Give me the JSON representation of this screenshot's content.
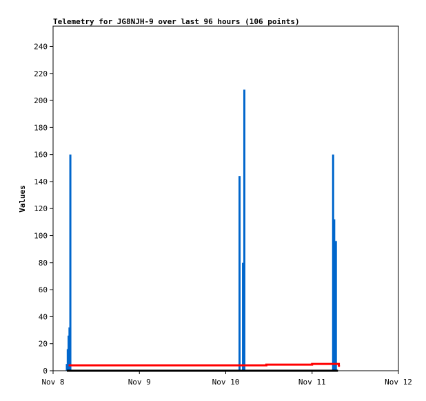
{
  "chart_data": {
    "type": "line",
    "title": "Telemetry for JG8NJH-9 over last 96 hours (106 points)",
    "xlabel": "",
    "ylabel": "Values",
    "ylim": [
      0,
      255
    ],
    "yticks": [
      0,
      20,
      40,
      60,
      80,
      100,
      120,
      140,
      160,
      180,
      200,
      220,
      240
    ],
    "xlim": [
      "Nov 8 00:00",
      "Nov 12 00:00"
    ],
    "xticks": [
      "Nov 8",
      "Nov 9",
      "Nov 10",
      "Nov 11",
      "Nov 12"
    ],
    "grid": false,
    "series": [
      {
        "color": "#0066cc",
        "style": "impulse",
        "points": [
          [
            "Nov 8 03:50",
            5
          ],
          [
            "Nov 8 04:05",
            16
          ],
          [
            "Nov 8 04:19",
            26
          ],
          [
            "Nov 8 04:34",
            32
          ],
          [
            "Nov 8 04:48",
            160
          ],
          [
            "Nov 10 03:50",
            144
          ],
          [
            "Nov 10 04:48",
            80
          ],
          [
            "Nov 10 05:10",
            208
          ],
          [
            "Nov 11 05:51",
            160
          ],
          [
            "Nov 11 06:09",
            112
          ],
          [
            "Nov 11 06:20",
            32
          ],
          [
            "Nov 11 06:37",
            96
          ]
        ]
      },
      {
        "color": "#ff0000",
        "style": "line",
        "points": [
          [
            "Nov 8 04:19",
            4
          ],
          [
            "Nov 10 11:17",
            4
          ],
          [
            "Nov 10 11:17",
            4.5
          ],
          [
            "Nov 11 00:00",
            4.5
          ],
          [
            "Nov 11 00:00",
            5
          ],
          [
            "Nov 11 07:26",
            5
          ],
          [
            "Nov 11 07:26",
            3
          ],
          [
            "Nov 11 07:30",
            4
          ]
        ]
      },
      {
        "color": "#000000",
        "style": "line",
        "points": [
          [
            "Nov 8 03:50",
            0
          ],
          [
            "Nov 11 07:12",
            0
          ]
        ]
      }
    ]
  }
}
